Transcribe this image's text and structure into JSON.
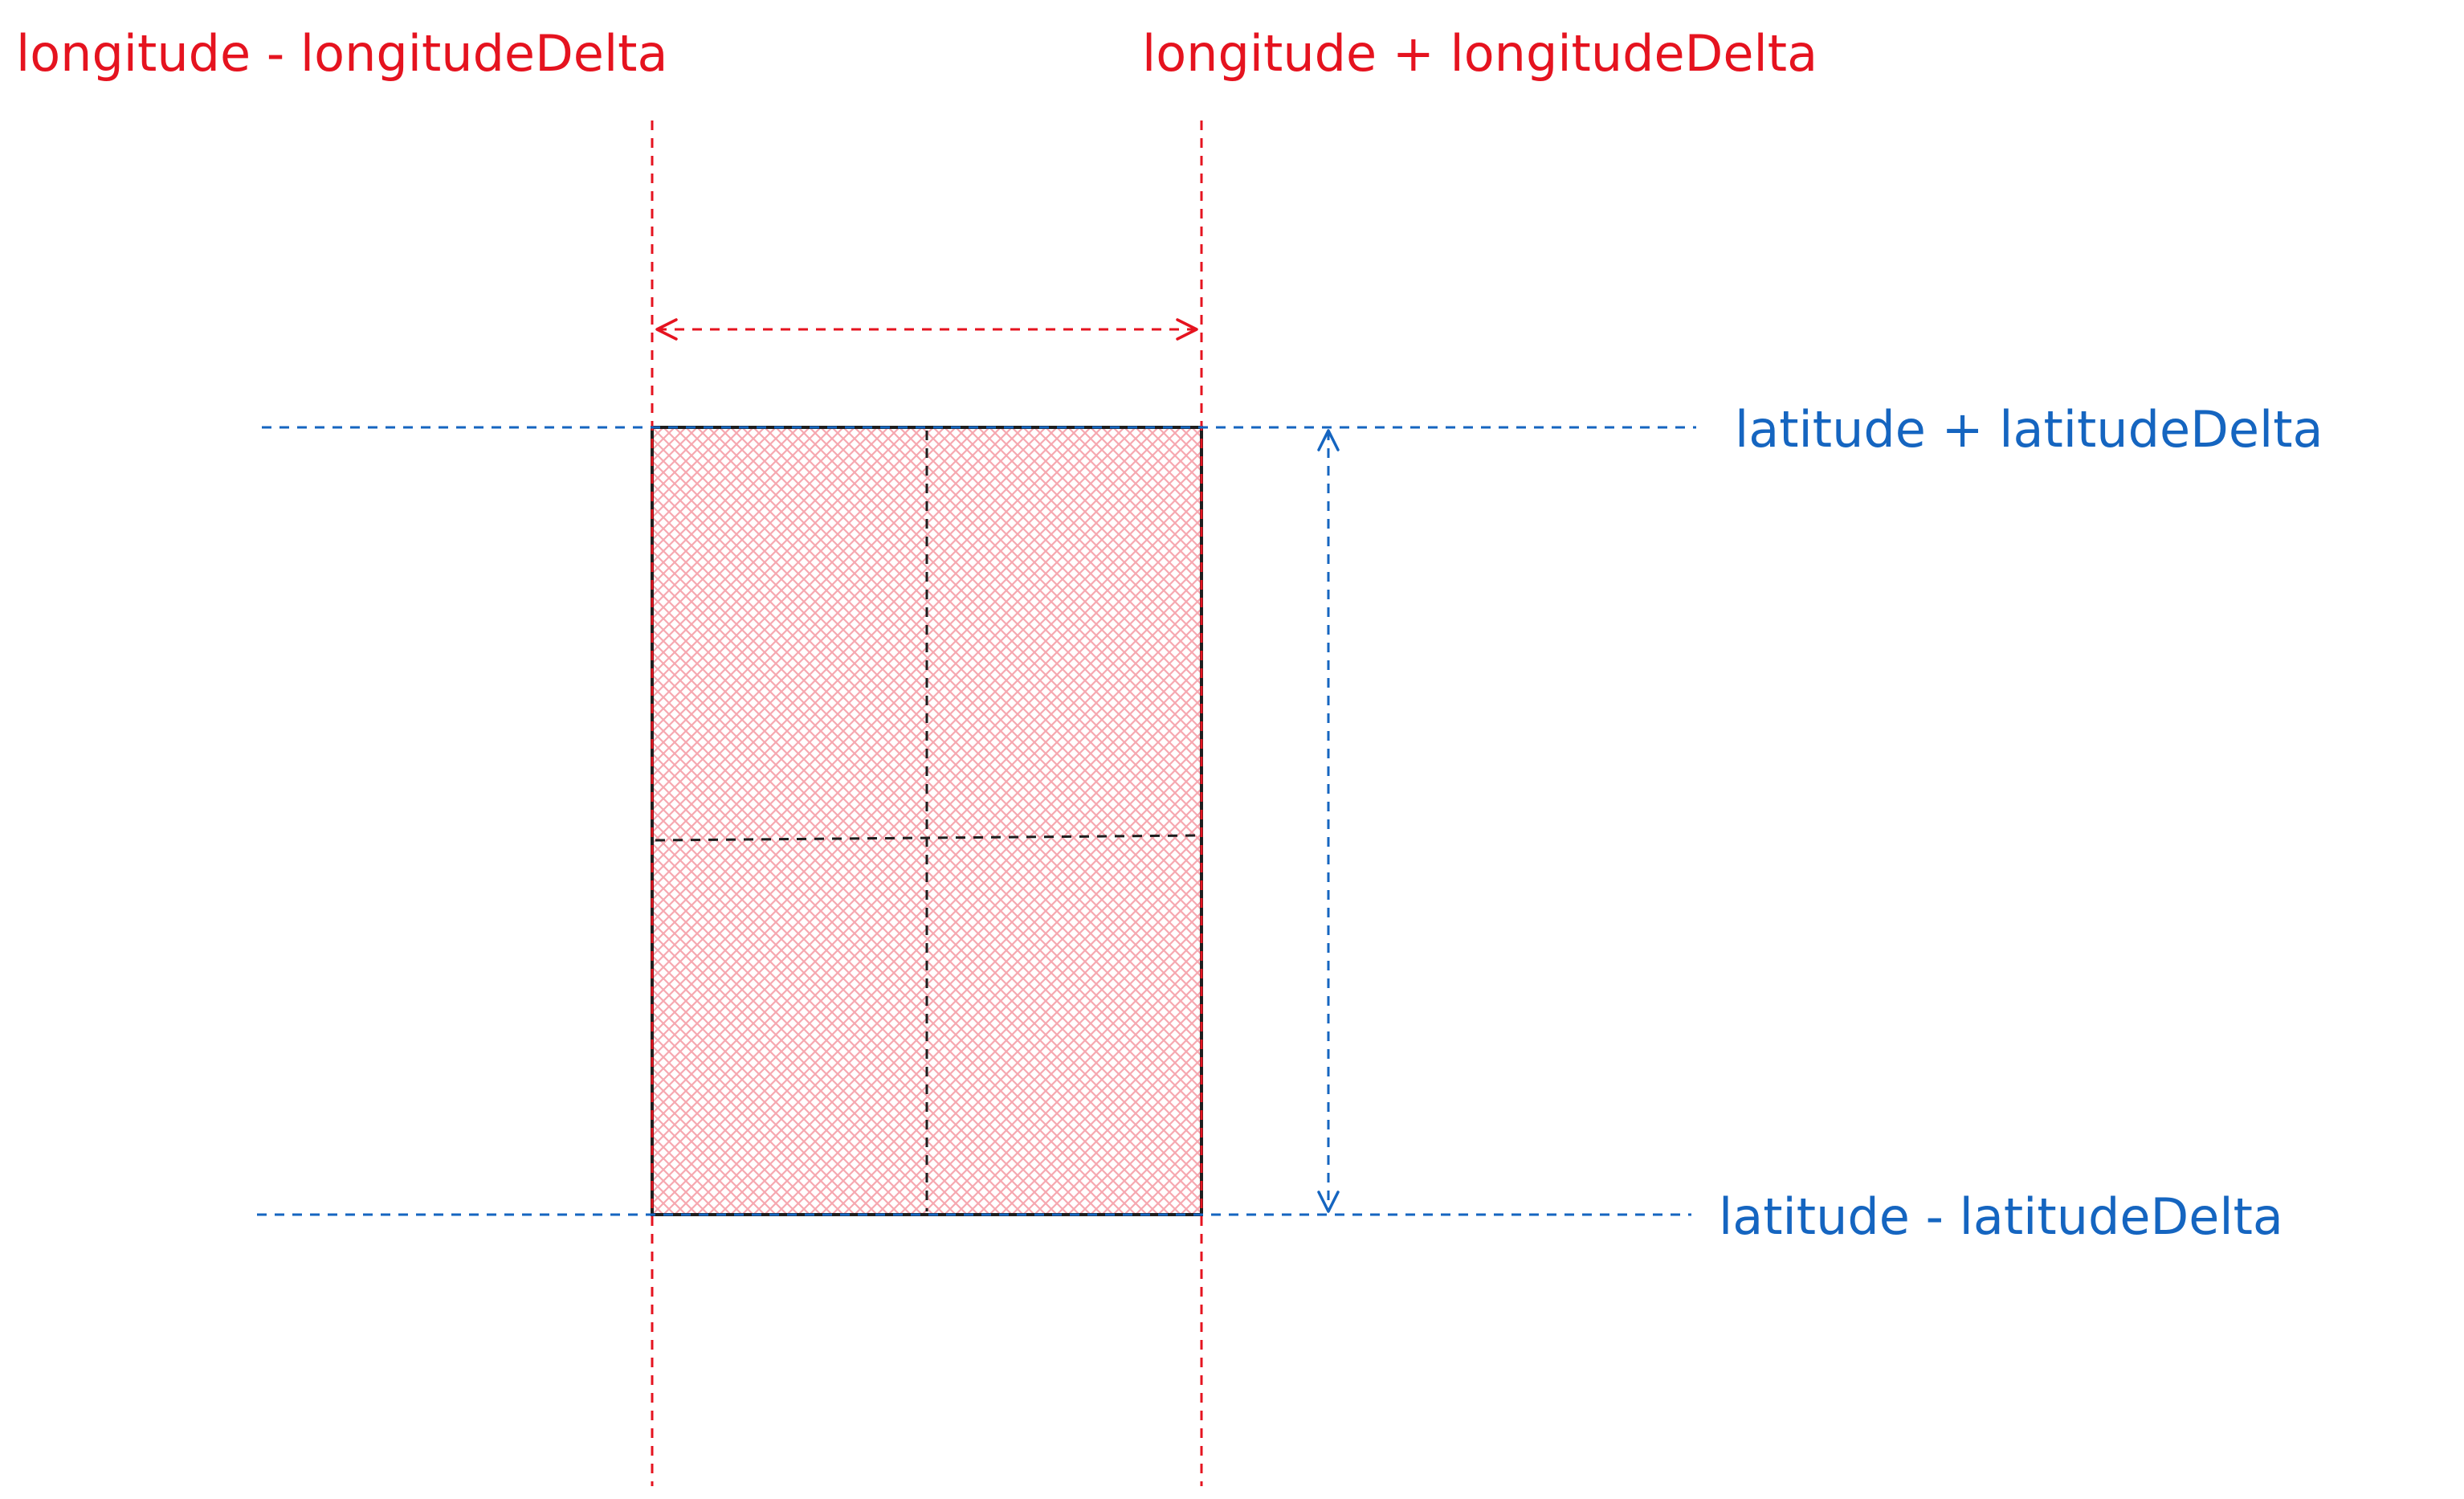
{
  "labels": {
    "lon_minus": "longitude - longitudeDelta",
    "lon_plus": "longitude + longitudeDelta",
    "lat_plus": "latitude + latitudeDelta",
    "lat_minus": "latitude - latitudeDelta"
  },
  "colors": {
    "longitude": "#e5131f",
    "latitude": "#1565c0",
    "region_fill": "#fbc8cc",
    "region_border": "#1e1e1e"
  }
}
